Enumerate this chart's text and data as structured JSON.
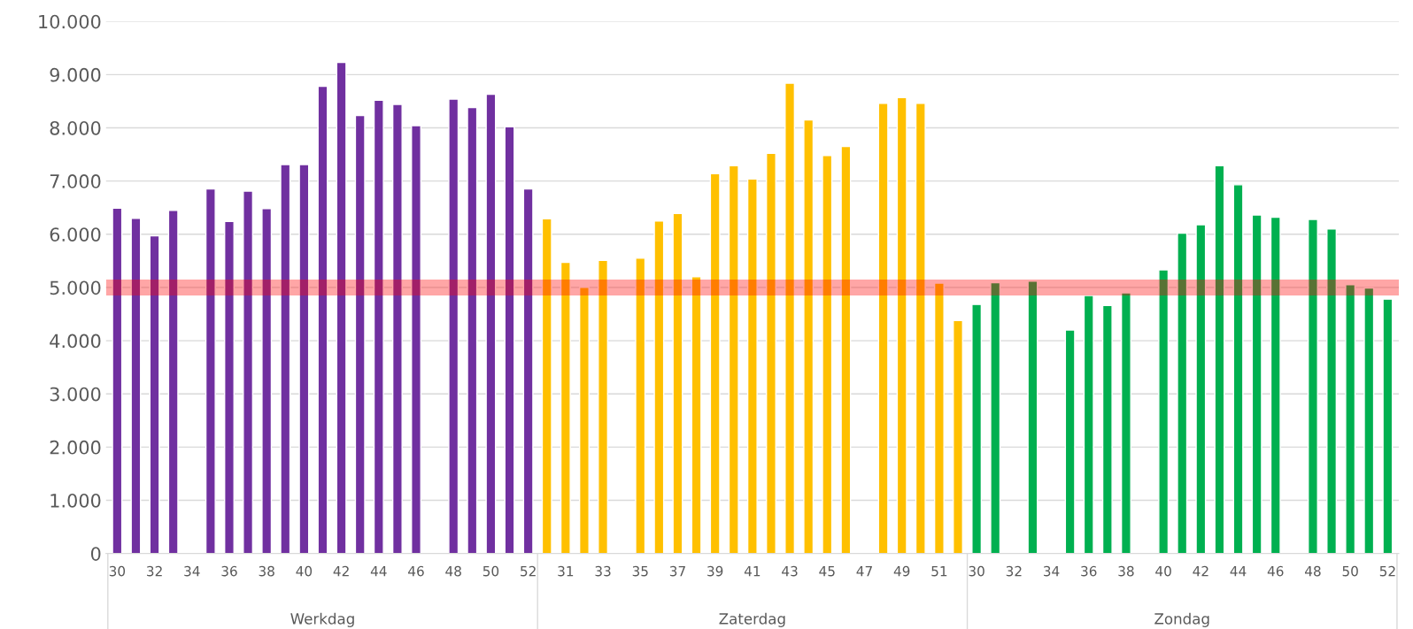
{
  "chart_data": {
    "type": "bar",
    "categories": [
      "30",
      null,
      "32",
      null,
      "34",
      null,
      "36",
      null,
      "38",
      null,
      "40",
      null,
      "42",
      null,
      "44",
      null,
      "46",
      null,
      "48",
      null,
      "50",
      null,
      "52",
      null,
      "31",
      null,
      "33",
      null,
      "35",
      null,
      "37",
      null,
      "39",
      null,
      "41",
      null,
      "43",
      null,
      "45",
      null,
      "47",
      null,
      "49",
      null,
      "51",
      null,
      "30",
      null,
      "32",
      null,
      "34",
      null,
      "36",
      null,
      "38",
      null,
      "40",
      null,
      "42",
      null,
      "44",
      null,
      "46",
      null,
      "48",
      null,
      "50",
      null,
      "52"
    ],
    "series": [
      {
        "color": "#7030a0",
        "values": [
          6490,
          6300,
          5970,
          6450,
          null,
          6850,
          6240,
          6810,
          6480,
          7310,
          7310,
          8780,
          9230,
          8230,
          8520,
          8440,
          8040,
          null,
          8540,
          8380,
          8630,
          8020,
          6850,
          null,
          null,
          null,
          null,
          null,
          null,
          null,
          null,
          null,
          null,
          null,
          null,
          null,
          null,
          null,
          null,
          null,
          null,
          null,
          null,
          null,
          null,
          null,
          null,
          null,
          null,
          null,
          null,
          null,
          null,
          null,
          null,
          null,
          null,
          null,
          null,
          null,
          null,
          null,
          null,
          null,
          null,
          null,
          null,
          null,
          null
        ]
      },
      {
        "color": "#ffc000",
        "values": [
          null,
          null,
          null,
          null,
          null,
          null,
          null,
          null,
          null,
          null,
          null,
          null,
          null,
          null,
          null,
          null,
          null,
          null,
          null,
          null,
          null,
          null,
          null,
          6290,
          5470,
          5000,
          5510,
          null,
          5550,
          6250,
          6390,
          5200,
          7140,
          7290,
          7040,
          7520,
          8840,
          8150,
          7480,
          7650,
          null,
          8460,
          8570,
          8460,
          5080,
          4380,
          null,
          null,
          null,
          null,
          null,
          null,
          null,
          null,
          null,
          null,
          null,
          null,
          null,
          null,
          null,
          null,
          null,
          null,
          null,
          null,
          null,
          null,
          null
        ]
      },
      {
        "color": "#00b050",
        "values": [
          null,
          null,
          null,
          null,
          null,
          null,
          null,
          null,
          null,
          null,
          null,
          null,
          null,
          null,
          null,
          null,
          null,
          null,
          null,
          null,
          null,
          null,
          null,
          null,
          null,
          null,
          null,
          null,
          null,
          null,
          null,
          null,
          null,
          null,
          null,
          null,
          null,
          null,
          null,
          null,
          null,
          null,
          null,
          null,
          null,
          null,
          4680,
          5090,
          null,
          5120,
          null,
          4200,
          4850,
          4660,
          4900,
          null,
          5330,
          6020,
          6180,
          7290,
          6930,
          6360,
          6320,
          null,
          6280,
          6100,
          5050,
          4990,
          4780
        ]
      }
    ],
    "annotations": [
      "Werkdag",
      "Zaterdag",
      "Zondag"
    ],
    "ylim": [
      0,
      10000
    ],
    "yticks": [
      0,
      {
        "value": 1000,
        "label": "1.000"
      },
      {
        "value": 2000,
        "label": "2.000"
      },
      {
        "value": 3000,
        "label": "3.000"
      },
      {
        "value": 4000,
        "label": "4.000"
      },
      {
        "value": 5000,
        "label": "5.000"
      },
      {
        "value": 6000,
        "label": "6.000"
      },
      {
        "value": 7000,
        "label": "7.000"
      },
      {
        "value": 8000,
        "label": "8.000"
      },
      {
        "value": 9000,
        "label": "9.000"
      },
      {
        "value": 10000,
        "label": "10.000"
      }
    ],
    "bands": [
      {
        "axis": "y",
        "from": 4850,
        "to": 5150,
        "color": "#ff0000"
      }
    ],
    "grid": "y",
    "legend": false
  }
}
